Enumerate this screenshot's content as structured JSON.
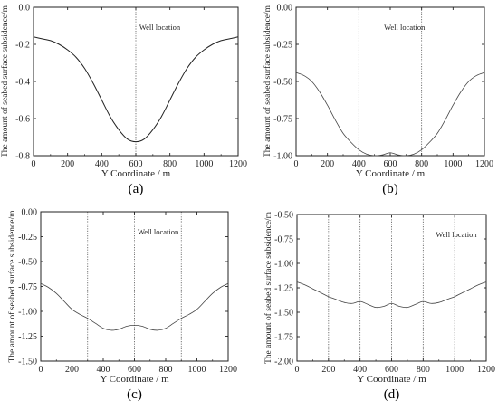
{
  "chart_data": [
    {
      "panel_label": "(a)",
      "type": "line",
      "xlabel": "Y Coordinate / m",
      "ylabel": "The amount of seabed surface subsidence/m",
      "xlim": [
        0,
        1200
      ],
      "ylim": [
        -0.8,
        0.0
      ],
      "xticks": [
        "0",
        "200",
        "400",
        "600",
        "800",
        "1000",
        "1200"
      ],
      "yticks": [
        "0.0",
        "-0.2",
        "-0.4",
        "-0.6",
        "-0.8"
      ],
      "xtick_values": [
        0,
        200,
        400,
        600,
        800,
        1000,
        1200
      ],
      "ytick_values": [
        0,
        -0.2,
        -0.4,
        -0.6,
        -0.8
      ],
      "grid": false,
      "annotation": "Well location",
      "well_locations": [
        600
      ],
      "series": [
        {
          "x": [
            0,
            50,
            100,
            150,
            200,
            250,
            300,
            350,
            400,
            450,
            500,
            550,
            600,
            650,
            700,
            750,
            800,
            850,
            900,
            950,
            1000,
            1050,
            1100,
            1150,
            1200
          ],
          "y": [
            -0.16,
            -0.17,
            -0.18,
            -0.2,
            -0.23,
            -0.27,
            -0.33,
            -0.41,
            -0.5,
            -0.59,
            -0.66,
            -0.71,
            -0.725,
            -0.71,
            -0.66,
            -0.59,
            -0.5,
            -0.41,
            -0.33,
            -0.27,
            -0.23,
            -0.2,
            -0.18,
            -0.17,
            -0.16
          ]
        }
      ]
    },
    {
      "panel_label": "(b)",
      "type": "line",
      "xlabel": "Y Coordinate / m",
      "ylabel": "The amount of seabed surface subsidence/m",
      "xlim": [
        0,
        1200
      ],
      "ylim": [
        -1.0,
        0.0
      ],
      "xticks": [
        "0",
        "200",
        "400",
        "600",
        "800",
        "1000",
        "1200"
      ],
      "yticks": [
        "0.00",
        "-0.25",
        "-0.50",
        "-0.75",
        "-1.00"
      ],
      "xtick_values": [
        0,
        200,
        400,
        600,
        800,
        1000,
        1200
      ],
      "ytick_values": [
        0,
        -0.25,
        -0.5,
        -0.75,
        -1.0
      ],
      "grid": false,
      "annotation": "Well location",
      "well_locations": [
        400,
        800
      ],
      "series": [
        {
          "x": [
            0,
            50,
            100,
            150,
            200,
            250,
            300,
            350,
            400,
            450,
            500,
            550,
            600,
            650,
            700,
            750,
            800,
            850,
            900,
            950,
            1000,
            1050,
            1100,
            1150,
            1200
          ],
          "y": [
            -0.44,
            -0.46,
            -0.5,
            -0.57,
            -0.66,
            -0.76,
            -0.85,
            -0.91,
            -0.96,
            -0.99,
            -1.0,
            -0.995,
            -0.98,
            -0.995,
            -1.0,
            -0.99,
            -0.96,
            -0.91,
            -0.85,
            -0.76,
            -0.66,
            -0.57,
            -0.5,
            -0.46,
            -0.44
          ]
        }
      ]
    },
    {
      "panel_label": "(c)",
      "type": "line",
      "xlabel": "Y Coordinate / m",
      "ylabel": "The amount of seabed surface subsidence/m",
      "xlim": [
        0,
        1200
      ],
      "ylim": [
        -1.5,
        0.0
      ],
      "xticks": [
        "0",
        "200",
        "400",
        "600",
        "800",
        "1000",
        "1200"
      ],
      "yticks": [
        "0.00",
        "-0.25",
        "-0.50",
        "-0.75",
        "-1.00",
        "-1.25",
        "-1.50"
      ],
      "xtick_values": [
        0,
        200,
        400,
        600,
        800,
        1000,
        1200
      ],
      "ytick_values": [
        0,
        -0.25,
        -0.5,
        -0.75,
        -1.0,
        -1.25,
        -1.5
      ],
      "grid": false,
      "annotation": "Well location",
      "well_locations": [
        300,
        600,
        900
      ],
      "series": [
        {
          "x": [
            0,
            50,
            100,
            150,
            200,
            250,
            300,
            350,
            400,
            450,
            500,
            550,
            600,
            650,
            700,
            750,
            800,
            850,
            900,
            950,
            1000,
            1050,
            1100,
            1150,
            1200
          ],
          "y": [
            -0.72,
            -0.76,
            -0.82,
            -0.9,
            -0.98,
            -1.03,
            -1.07,
            -1.12,
            -1.17,
            -1.19,
            -1.18,
            -1.15,
            -1.14,
            -1.15,
            -1.18,
            -1.19,
            -1.17,
            -1.12,
            -1.07,
            -1.03,
            -0.98,
            -0.9,
            -0.82,
            -0.76,
            -0.72
          ]
        }
      ]
    },
    {
      "panel_label": "(d)",
      "type": "line",
      "xlabel": "Y Coordinate / m",
      "ylabel": "The amount of seabed surface subsidence/m",
      "xlim": [
        0,
        1200
      ],
      "ylim": [
        -2.0,
        -0.5
      ],
      "xticks": [
        "0",
        "200",
        "400",
        "600",
        "800",
        "1000",
        "1200"
      ],
      "yticks": [
        "-0.50",
        "-0.75",
        "-1.00",
        "-1.25",
        "-1.50",
        "-1.75",
        "-2.00"
      ],
      "xtick_values": [
        0,
        200,
        400,
        600,
        800,
        1000,
        1200
      ],
      "ytick_values": [
        -0.5,
        -0.75,
        -1.0,
        -1.25,
        -1.5,
        -1.75,
        -2.0
      ],
      "grid": false,
      "annotation": "Well location",
      "well_locations": [
        200,
        400,
        600,
        800,
        1000
      ],
      "series": [
        {
          "x": [
            0,
            50,
            100,
            150,
            200,
            250,
            300,
            350,
            400,
            450,
            500,
            550,
            600,
            650,
            700,
            750,
            800,
            850,
            900,
            950,
            1000,
            1050,
            1100,
            1150,
            1200
          ],
          "y": [
            -1.19,
            -1.22,
            -1.26,
            -1.3,
            -1.34,
            -1.37,
            -1.4,
            -1.41,
            -1.39,
            -1.42,
            -1.45,
            -1.44,
            -1.41,
            -1.44,
            -1.45,
            -1.42,
            -1.39,
            -1.41,
            -1.4,
            -1.37,
            -1.34,
            -1.3,
            -1.26,
            -1.22,
            -1.19
          ]
        }
      ]
    }
  ]
}
